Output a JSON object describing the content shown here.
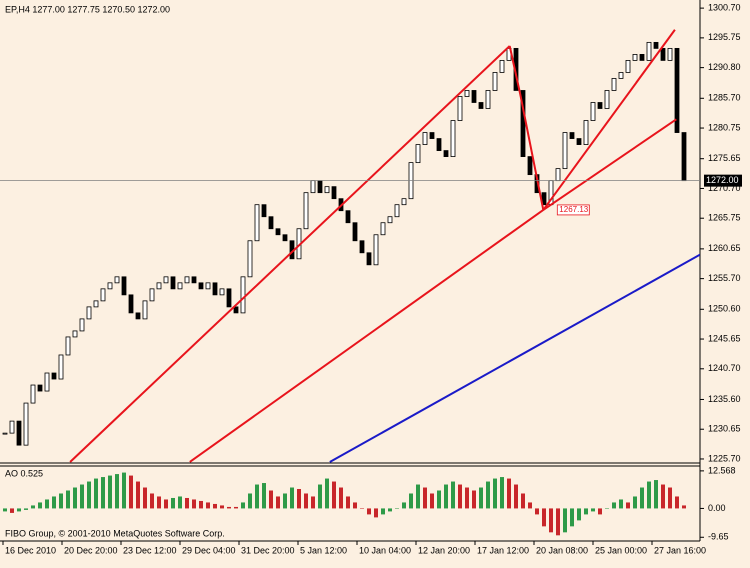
{
  "chart_data": [
    {
      "type": "candlestick",
      "title": "EP,H4  1277.00 1277.75 1270.50 1272.00",
      "values": [
        1230,
        1232,
        1228,
        1235,
        1238,
        1237,
        1240,
        1239,
        1243,
        1246,
        1247,
        1249,
        1251,
        1252,
        1254,
        1255,
        1256,
        1253,
        1250,
        1249,
        1252,
        1254,
        1255,
        1256,
        1254,
        1255,
        1256,
        1255,
        1254,
        1255,
        1253,
        1254,
        1251,
        1250,
        1256,
        1262,
        1268,
        1266,
        1264,
        1263,
        1262,
        1259,
        1264,
        1270,
        1272,
        1270,
        1271,
        1269,
        1267,
        1265,
        1262,
        1260,
        1258,
        1263,
        1265,
        1266,
        1268,
        1269,
        1275,
        1278,
        1280,
        1279,
        1277,
        1276,
        1282,
        1286,
        1287,
        1285,
        1284,
        1287,
        1290,
        1292,
        1294,
        1287,
        1276,
        1273,
        1270,
        1268,
        1272,
        1274,
        1280,
        1279,
        1278,
        1282,
        1285,
        1284,
        1287,
        1289,
        1290,
        1292,
        1293,
        1292,
        1295,
        1294,
        1292,
        1294,
        1280,
        1272
      ],
      "ylim": [
        1225.03,
        1302.05
      ],
      "yticks": [
        {
          "value": 1300.7,
          "label": "1300.70"
        },
        {
          "value": 1295.75,
          "label": "1295.75"
        },
        {
          "value": 1290.8,
          "label": "1290.80"
        },
        {
          "value": 1285.7,
          "label": "1285.70"
        },
        {
          "value": 1280.75,
          "label": "1280.75"
        },
        {
          "value": 1275.65,
          "label": "1275.65"
        },
        {
          "value": 1270.7,
          "label": "1270.70"
        },
        {
          "value": 1265.75,
          "label": "1265.75"
        },
        {
          "value": 1260.65,
          "label": "1260.65"
        },
        {
          "value": 1255.7,
          "label": "1255.70"
        },
        {
          "value": 1250.6,
          "label": "1250.60"
        },
        {
          "value": 1245.65,
          "label": "1245.65"
        },
        {
          "value": 1240.7,
          "label": "1240.70"
        },
        {
          "value": 1235.6,
          "label": "1235.60"
        },
        {
          "value": 1230.65,
          "label": "1230.65"
        },
        {
          "value": 1225.7,
          "label": "1225.70"
        }
      ],
      "last_price": {
        "value": 1272,
        "label": "1272.00"
      },
      "low_label": 1267.13,
      "lines": [
        {
          "color": "#e8141c",
          "x": [
            9.3,
            72.1
          ],
          "y": [
            1225.2,
            1294.4
          ]
        },
        {
          "color": "#e8141c",
          "x": [
            72.1,
            73.6,
            76.9
          ],
          "y": [
            1294.4,
            1286.4,
            1267.13
          ]
        },
        {
          "color": "#e8141c",
          "x": [
            76.9,
            95.7
          ],
          "y": [
            1267.13,
            1297.1
          ]
        },
        {
          "color": "#e8141c",
          "x": [
            26.4,
            76.9,
            95.9
          ],
          "y": [
            1225.2,
            1267.13,
            1282.2
          ]
        },
        {
          "color": "#1a1ac8",
          "x": [
            46.4,
            99.3
          ],
          "y": [
            1225.2,
            1259.7
          ]
        }
      ],
      "x_labels": [
        "16 Dec 2010",
        "20 Dec 20:00",
        "23 Dec 12:00",
        "29 Dec 04:00",
        "31 Dec 20:00",
        "5 Jan 12:00",
        "10 Jan 04:00",
        "12 Jan 20:00",
        "17 Jan 12:00",
        "20 Jan 08:00",
        "25 Jan 00:00",
        "27 Jan 16:00"
      ]
    },
    {
      "type": "bar",
      "title": "AO 0.525",
      "values": [
        -1,
        -1.5,
        -1,
        -0.5,
        1,
        2,
        3,
        4,
        5,
        6,
        7,
        8,
        9,
        10,
        10.5,
        11,
        11.5,
        12,
        11,
        9,
        7,
        5,
        4,
        3,
        3.5,
        4,
        3.5,
        3,
        2.5,
        2,
        1.5,
        1,
        0.5,
        0.5,
        2,
        5,
        8,
        8.5,
        6,
        4,
        5,
        7,
        6.5,
        5,
        4,
        8,
        10,
        9,
        7,
        4,
        2,
        0,
        -2,
        -3,
        -2,
        -1,
        0,
        2,
        5,
        8,
        7,
        5,
        6,
        8,
        9,
        8,
        7,
        6,
        7,
        9,
        10,
        10.5,
        10,
        8,
        5,
        2,
        -2,
        -6,
        -8,
        -9,
        -8,
        -6,
        -4,
        -2,
        -1,
        -2,
        0,
        2,
        3,
        2,
        4,
        7,
        9,
        9.5,
        8,
        7,
        4,
        1
      ],
      "up_color": "#2e9a48",
      "down_color": "#c8262a",
      "ylim": [
        -10.9,
        14.2
      ],
      "yticks": [
        12.568,
        {
          "value": 0,
          "label": "0.00"
        },
        -9.65
      ]
    }
  ],
  "footer": "FIBO Group, © 2001-2010 MetaQuotes Software Corp."
}
